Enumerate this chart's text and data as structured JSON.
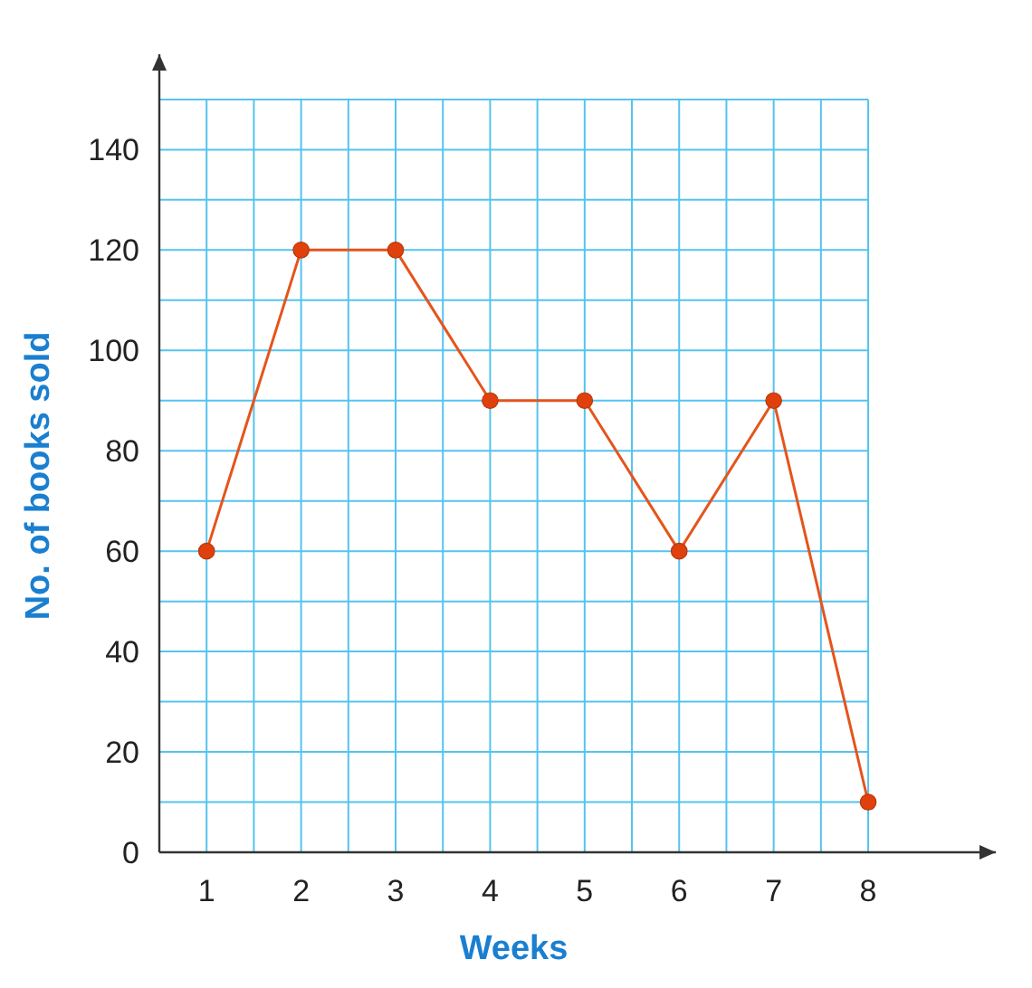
{
  "chart_data": {
    "type": "line",
    "xlabel": "Weeks",
    "ylabel": "No. of books sold",
    "x": [
      1,
      2,
      3,
      4,
      5,
      6,
      7,
      8
    ],
    "series": [
      {
        "color": "#e4551c",
        "values": [
          60,
          120,
          120,
          90,
          90,
          60,
          90,
          10
        ]
      }
    ],
    "xlim": [
      0.5,
      9.35
    ],
    "ylim": [
      0,
      159
    ],
    "xticks": [
      {
        "value": 0.5,
        "label": null
      },
      1,
      {
        "value": 1.5,
        "label": null
      },
      2,
      {
        "value": 2.5,
        "label": null
      },
      3,
      {
        "value": 3.5,
        "label": null
      },
      4,
      {
        "value": 4.5,
        "label": null
      },
      5,
      {
        "value": 5.5,
        "label": null
      },
      6,
      {
        "value": 6.5,
        "label": null
      },
      7,
      {
        "value": 7.5,
        "label": null
      },
      8
    ],
    "yticks": [
      0,
      {
        "value": 10,
        "label": null
      },
      20,
      {
        "value": 30,
        "label": null
      },
      40,
      {
        "value": 50,
        "label": null
      },
      60,
      {
        "value": 70,
        "label": null
      },
      80,
      {
        "value": 90,
        "label": null
      },
      100,
      {
        "value": 110,
        "label": null
      },
      120,
      {
        "value": 130,
        "label": null
      },
      140,
      {
        "value": 150,
        "label": null
      }
    ],
    "grid": true,
    "marker": "circle",
    "line_style": "solid"
  }
}
